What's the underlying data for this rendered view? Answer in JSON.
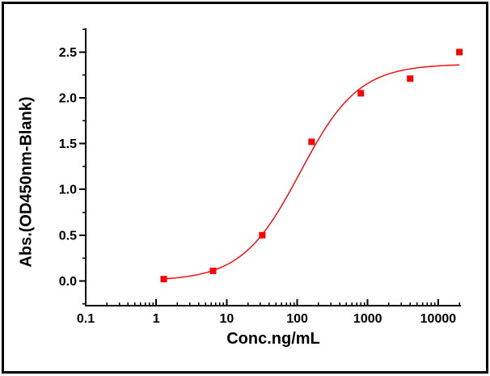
{
  "window": {
    "background": "#ffffff",
    "border_color": "#000000"
  },
  "chart_data": {
    "type": "scatter",
    "xlabel": "Conc.ng/mL",
    "ylabel": "Abs.(OD450nm-Blank)",
    "x_scale": "log",
    "grid": false,
    "xlim": [
      0.1,
      21000
    ],
    "ylim": [
      -0.27,
      2.76
    ],
    "x_ticks": {
      "values": [
        0.1,
        1,
        10,
        100,
        1000,
        10000
      ],
      "labels": [
        "0.1",
        "1",
        "10",
        "100",
        "1000",
        "10000"
      ]
    },
    "y_ticks": {
      "values": [
        0.0,
        0.5,
        1.0,
        1.5,
        2.0,
        2.5
      ],
      "labels": [
        "0.0",
        "0.5",
        "1.0",
        "1.5",
        "2.0",
        "2.5"
      ]
    },
    "y_minor_step": 0.25,
    "axis_color": "#000000",
    "series": [
      {
        "name": "measured-points",
        "kind": "scatter",
        "marker": "square",
        "color": "#ff0000",
        "x": [
          1.28,
          6.4,
          32,
          160,
          800,
          4000,
          20000
        ],
        "y": [
          0.02,
          0.11,
          0.5,
          1.52,
          2.05,
          2.21,
          2.5
        ]
      },
      {
        "name": "fit-curve",
        "kind": "line",
        "color": "#ff0000",
        "model": "4PL",
        "params": {
          "bottom": 0.0,
          "top": 2.37,
          "ec50": 110,
          "hill": 1.05
        },
        "x_range": [
          1.28,
          20000
        ]
      }
    ]
  }
}
